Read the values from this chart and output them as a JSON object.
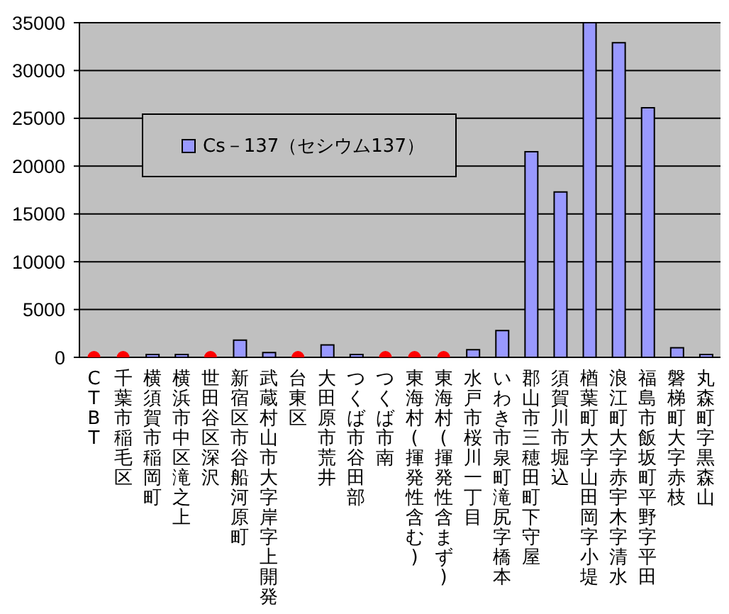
{
  "chart_data": {
    "type": "bar",
    "categories": [
      "CTBT",
      "千葉市稲毛区",
      "横須賀市稲岡町",
      "横浜市中区滝之上",
      "世田谷区深沢",
      "新宿区市谷船河原町",
      "武蔵村山市大字岸字上開発",
      "台東区",
      "大田原市荒井",
      "つくば市谷田部",
      "つくば市南",
      "東海村(揮発性含む)",
      "東海村(揮発性含まず)",
      "水戸市桜川一丁目",
      "いわき市泉町滝尻字橋本",
      "郡山市三穂田町下守屋",
      "須賀川市堀込",
      "楢葉町大字山田岡字小堤",
      "浪江町大字赤宇木字清水",
      "福島市飯坂町平野字平田",
      "磐梯町大字赤枝",
      "丸森町字黒森山"
    ],
    "series": [
      {
        "name": "Cs－137（セシウム137）",
        "type": "bar",
        "color": "#9999ff",
        "values": [
          null,
          null,
          300,
          300,
          null,
          1800,
          500,
          null,
          1300,
          300,
          null,
          null,
          null,
          800,
          2800,
          21500,
          17300,
          35000,
          32900,
          26100,
          1000,
          300
        ]
      },
      {
        "type": "scatter",
        "color": "#ff0000",
        "marker": "circle",
        "x": [
          "CTBT",
          "千葉市稲毛区",
          "世田谷区深沢",
          "台東区",
          "つくば市南",
          "東海村(揮発性含む)",
          "東海村(揮発性含まず)"
        ],
        "values": [
          0,
          0,
          0,
          0,
          0,
          0,
          0
        ]
      }
    ],
    "ylim": [
      0,
      35000
    ],
    "yticks": [
      0,
      5000,
      10000,
      15000,
      20000,
      25000,
      30000,
      35000
    ],
    "grid": "y",
    "legend": "top left"
  }
}
